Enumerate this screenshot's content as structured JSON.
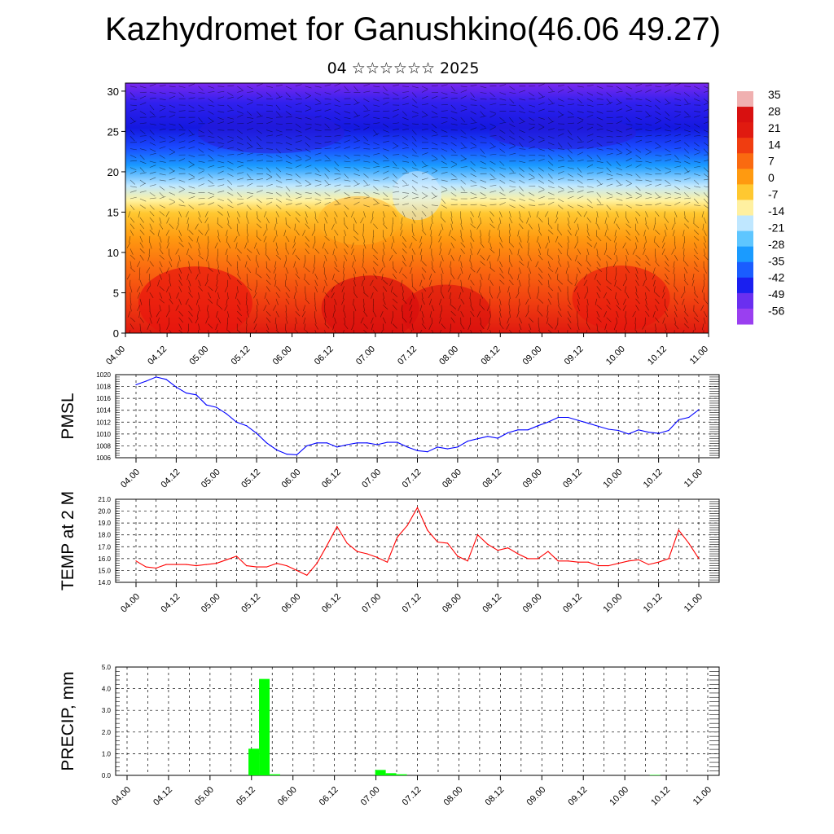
{
  "page": {
    "title": "Kazhydromet for Ganushkino(46.06 49.27)",
    "subtitle": "04 ☆☆☆☆☆☆ 2025"
  },
  "chart_data": [
    {
      "type": "heatmap",
      "title": "",
      "ylim": [
        0,
        31
      ],
      "y_ticks": [
        "0",
        "5",
        "10",
        "15",
        "20",
        "25",
        "30"
      ],
      "x_ticks": [
        "04.00",
        "04.12",
        "05.00",
        "05.12",
        "06.00",
        "06.12",
        "07.00",
        "07.12",
        "08.00",
        "08.12",
        "09.00",
        "09.12",
        "10.00",
        "10.12",
        "11.00"
      ],
      "colorbar_labels": [
        "35",
        "28",
        "21",
        "14",
        "7",
        "0",
        "-7",
        "-14",
        "-21",
        "-28",
        "-35",
        "-42",
        "-49",
        "-56"
      ],
      "colorbar_colors": [
        "#f0b0b0",
        "#d81010",
        "#e01a10",
        "#f03d10",
        "#fa6a10",
        "#ff9a10",
        "#ffc830",
        "#fff0a0",
        "#bfe7ff",
        "#5ec6ff",
        "#1a9bff",
        "#1a5dff",
        "#1a1ff0",
        "#6a2ff0",
        "#9a3ff0"
      ],
      "wind_barbs": true
    },
    {
      "type": "line",
      "ylabel": "PMSL",
      "ylim": [
        1006,
        1020
      ],
      "y_ticks": [
        "1006",
        "1008",
        "1010",
        "1012",
        "1014",
        "1016",
        "1018",
        "1020"
      ],
      "x_ticks": [
        "04.00",
        "04.12",
        "05.00",
        "05.12",
        "06.00",
        "06.12",
        "07.00",
        "07.12",
        "08.00",
        "08.12",
        "09.00",
        "09.12",
        "10.00",
        "10.12",
        "11.00"
      ],
      "line_color": "#0000ff",
      "values": [
        1018.3,
        1018.9,
        1019.6,
        1019.2,
        1017.9,
        1016.9,
        1016.6,
        1014.9,
        1014.5,
        1013.4,
        1012.0,
        1011.4,
        1010.1,
        1008.5,
        1007.3,
        1006.6,
        1006.5,
        1008.0,
        1008.5,
        1008.5,
        1007.8,
        1008.2,
        1008.5,
        1008.5,
        1008.2,
        1008.6,
        1008.6,
        1007.8,
        1007.2,
        1007.0,
        1007.8,
        1007.5,
        1007.8,
        1008.8,
        1009.2,
        1009.6,
        1009.3,
        1010.2,
        1010.7,
        1010.7,
        1011.4,
        1012.0,
        1012.8,
        1012.8,
        1012.3,
        1011.8,
        1011.3,
        1010.8,
        1010.6,
        1010.0,
        1010.7,
        1010.3,
        1010.1,
        1010.6,
        1012.4,
        1012.8,
        1014.1
      ]
    },
    {
      "type": "line",
      "ylabel": "TEMP at 2 M",
      "ylim": [
        14.0,
        21.0
      ],
      "y_ticks": [
        "14.0",
        "15.0",
        "16.0",
        "17.0",
        "18.0",
        "19.0",
        "20.0",
        "21.0"
      ],
      "x_ticks": [
        "04.00",
        "04.12",
        "05.00",
        "05.12",
        "06.00",
        "06.12",
        "07.00",
        "07.12",
        "08.00",
        "08.12",
        "09.00",
        "09.12",
        "10.00",
        "10.12",
        "11.00"
      ],
      "line_color": "#ff0000",
      "values": [
        15.8,
        15.3,
        15.2,
        15.5,
        15.5,
        15.5,
        15.4,
        15.5,
        15.6,
        15.9,
        16.2,
        15.4,
        15.3,
        15.3,
        15.6,
        15.4,
        15.0,
        14.6,
        15.6,
        17.1,
        18.7,
        17.3,
        16.6,
        16.4,
        16.1,
        15.7,
        17.8,
        18.8,
        20.3,
        18.4,
        17.4,
        17.3,
        16.2,
        15.8,
        18.0,
        17.2,
        16.7,
        16.9,
        16.4,
        16.0,
        16.0,
        16.6,
        15.8,
        15.8,
        15.7,
        15.7,
        15.4,
        15.4,
        15.6,
        15.8,
        15.9,
        15.5,
        15.7,
        16.0,
        18.4,
        17.3,
        16.0
      ]
    },
    {
      "type": "bar",
      "ylabel": "PRECIP, mm",
      "ylim": [
        0.0,
        5.0
      ],
      "y_ticks": [
        "0.0",
        "1.0",
        "2.0",
        "3.0",
        "4.0",
        "5.0"
      ],
      "x_ticks": [
        "04.00",
        "04.12",
        "05.00",
        "05.12",
        "06.00",
        "06.12",
        "07.00",
        "07.12",
        "08.00",
        "08.12",
        "09.00",
        "09.12",
        "10.00",
        "10.12",
        "11.00"
      ],
      "bar_color": "#00ff00",
      "values": [
        0,
        0,
        0,
        0,
        0,
        0,
        0,
        0,
        0,
        0,
        0,
        0,
        1.23,
        4.45,
        0.05,
        0,
        0,
        0,
        0,
        0,
        0,
        0,
        0,
        0,
        0.25,
        0.1,
        0.05,
        0,
        0,
        0,
        0,
        0,
        0,
        0,
        0,
        0,
        0,
        0,
        0,
        0,
        0,
        0,
        0,
        0,
        0,
        0,
        0,
        0,
        0,
        0,
        0.02,
        0,
        0,
        0,
        0,
        0
      ]
    }
  ]
}
